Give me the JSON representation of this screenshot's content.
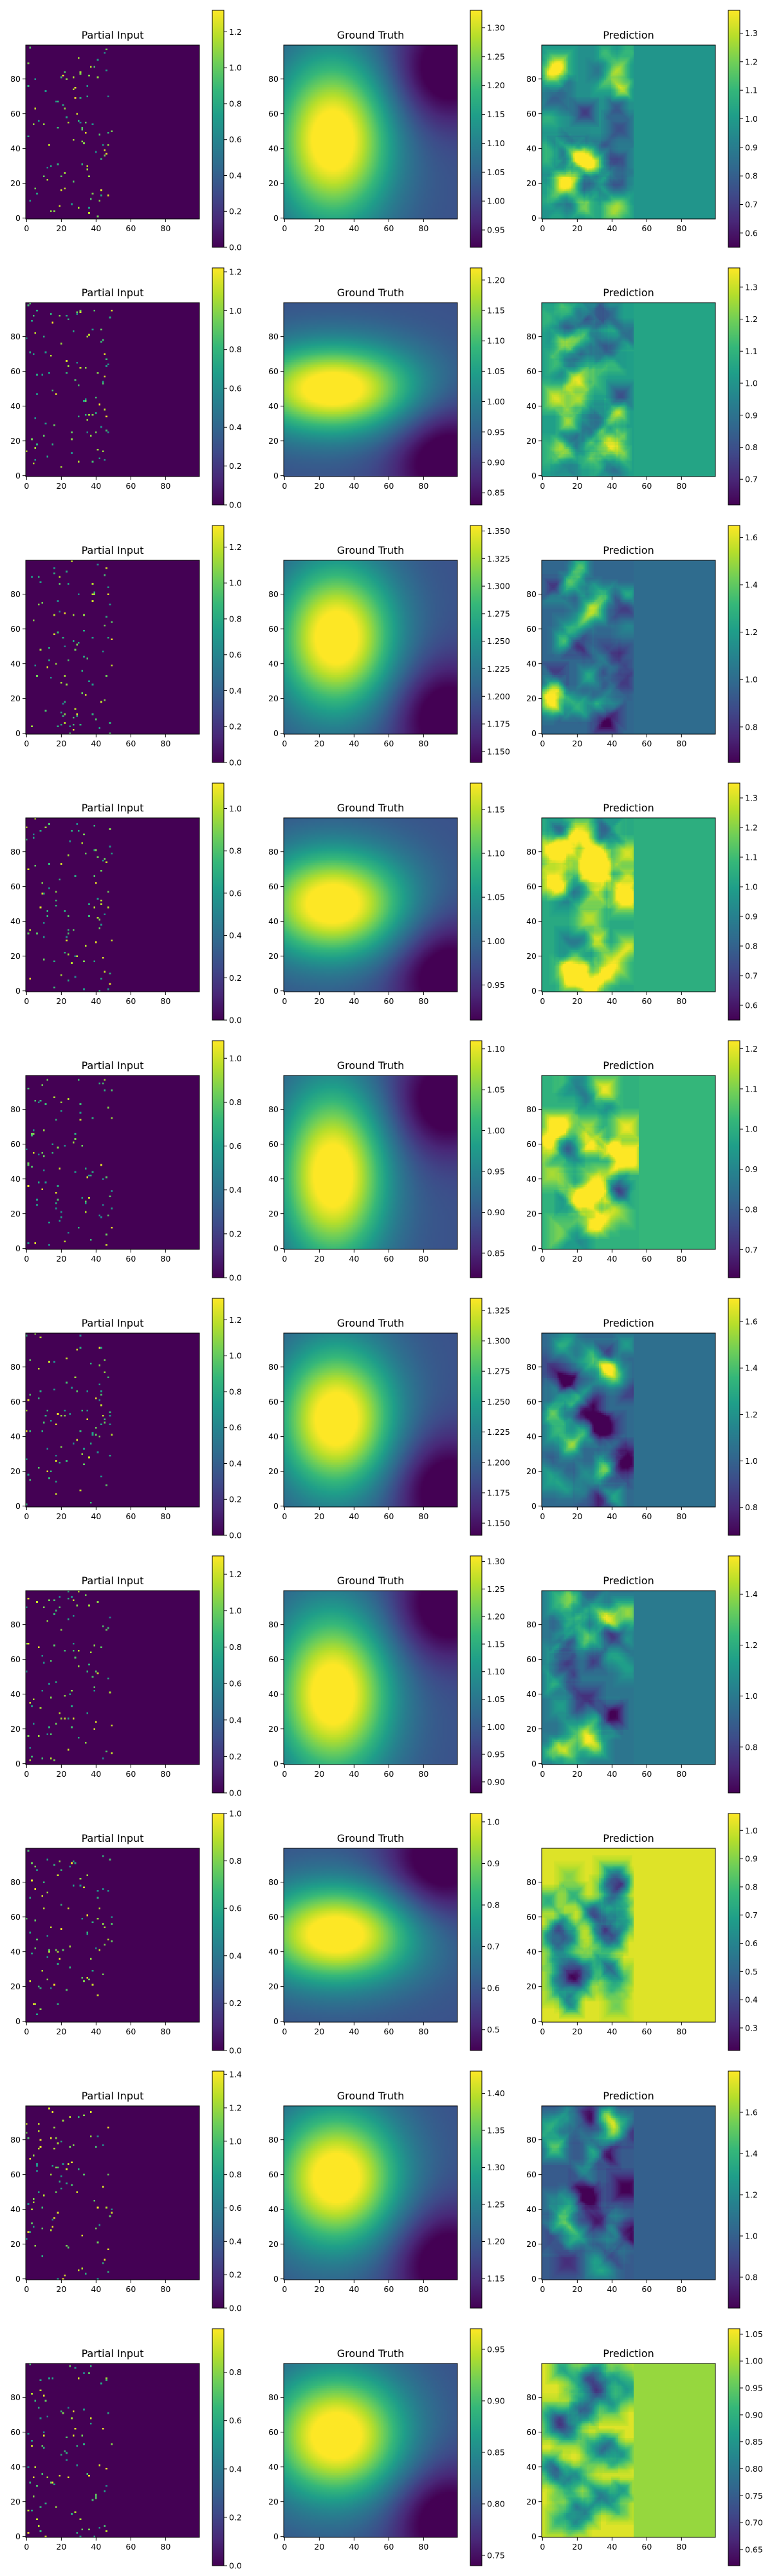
{
  "figure": {
    "colormap": "viridis",
    "column_titles": [
      "Partial Input",
      "Ground Truth",
      "Prediction"
    ]
  },
  "chart_data": {
    "type": "heatmap",
    "grid_size": 100,
    "x_ticks": [
      0,
      20,
      40,
      60,
      80
    ],
    "y_ticks": [
      0,
      20,
      40,
      60,
      80
    ],
    "rows": [
      {
        "partial_input": {
          "colorbar_ticks": [
            "0.0",
            "0.2",
            "0.4",
            "0.6",
            "0.8",
            "1.0",
            "1.2"
          ],
          "vmin": 0,
          "vmax": 1.32,
          "seed": 11
        },
        "ground_truth": {
          "colorbar_ticks": [
            "0.95",
            "1.00",
            "1.05",
            "1.10",
            "1.15",
            "1.20",
            "1.25",
            "1.30"
          ],
          "vmin": 0.92,
          "vmax": 1.33,
          "center": [
            28,
            45
          ],
          "spread": [
            24,
            34
          ],
          "dip": [
            92,
            85
          ]
        },
        "prediction": {
          "colorbar_ticks": [
            "0.6",
            "0.7",
            "0.8",
            "0.9",
            "1.0",
            "1.1",
            "1.2",
            "1.3"
          ],
          "vmin": 0.55,
          "vmax": 1.38,
          "background": 0.98,
          "seed": 21,
          "boundary": 52
        }
      },
      {
        "partial_input": {
          "colorbar_ticks": [
            "0.0",
            "0.2",
            "0.4",
            "0.6",
            "0.8",
            "1.0",
            "1.2"
          ],
          "vmin": 0,
          "vmax": 1.22,
          "seed": 12
        },
        "ground_truth": {
          "colorbar_ticks": [
            "0.85",
            "0.90",
            "0.95",
            "1.00",
            "1.05",
            "1.10",
            "1.15",
            "1.20"
          ],
          "vmin": 0.83,
          "vmax": 1.22,
          "center": [
            28,
            50
          ],
          "spread": [
            34,
            18
          ],
          "dip": [
            92,
            10
          ]
        },
        "prediction": {
          "colorbar_ticks": [
            "0.7",
            "0.8",
            "0.9",
            "1.0",
            "1.1",
            "1.2",
            "1.3"
          ],
          "vmin": 0.62,
          "vmax": 1.36,
          "background": 1.05,
          "seed": 22,
          "boundary": 52
        }
      },
      {
        "partial_input": {
          "colorbar_ticks": [
            "0.0",
            "0.2",
            "0.4",
            "0.6",
            "0.8",
            "1.0",
            "1.2"
          ],
          "vmin": 0,
          "vmax": 1.32,
          "seed": 13
        },
        "ground_truth": {
          "colorbar_ticks": [
            "1.150",
            "1.175",
            "1.200",
            "1.225",
            "1.250",
            "1.275",
            "1.300",
            "1.325",
            "1.350"
          ],
          "vmin": 1.14,
          "vmax": 1.355,
          "center": [
            30,
            55
          ],
          "spread": [
            24,
            30
          ],
          "dip": [
            92,
            10
          ]
        },
        "prediction": {
          "colorbar_ticks": [
            "0.8",
            "1.0",
            "1.2",
            "1.4",
            "1.6"
          ],
          "vmin": 0.65,
          "vmax": 1.65,
          "background": 1.0,
          "seed": 23,
          "boundary": 52
        }
      },
      {
        "partial_input": {
          "colorbar_ticks": [
            "0.0",
            "0.2",
            "0.4",
            "0.6",
            "0.8",
            "1.0"
          ],
          "vmin": 0,
          "vmax": 1.12,
          "seed": 14
        },
        "ground_truth": {
          "colorbar_ticks": [
            "0.95",
            "1.00",
            "1.05",
            "1.10",
            "1.15"
          ],
          "vmin": 0.91,
          "vmax": 1.18,
          "center": [
            28,
            50
          ],
          "spread": [
            30,
            22
          ],
          "dip": [
            92,
            10
          ]
        },
        "prediction": {
          "colorbar_ticks": [
            "0.6",
            "0.7",
            "0.8",
            "0.9",
            "1.0",
            "1.1",
            "1.2",
            "1.3"
          ],
          "vmin": 0.55,
          "vmax": 1.35,
          "background": 1.05,
          "seed": 24,
          "boundary": 52
        }
      },
      {
        "partial_input": {
          "colorbar_ticks": [
            "0.0",
            "0.2",
            "0.4",
            "0.6",
            "0.8",
            "1.0"
          ],
          "vmin": 0,
          "vmax": 1.08,
          "seed": 15
        },
        "ground_truth": {
          "colorbar_ticks": [
            "0.85",
            "0.90",
            "0.95",
            "1.00",
            "1.05",
            "1.10"
          ],
          "vmin": 0.82,
          "vmax": 1.11,
          "center": [
            28,
            42
          ],
          "spread": [
            22,
            36
          ],
          "dip": [
            92,
            85
          ]
        },
        "prediction": {
          "colorbar_ticks": [
            "0.7",
            "0.8",
            "0.9",
            "1.0",
            "1.1",
            "1.2"
          ],
          "vmin": 0.63,
          "vmax": 1.22,
          "background": 1.02,
          "seed": 25,
          "boundary": 55
        }
      },
      {
        "partial_input": {
          "colorbar_ticks": [
            "0.0",
            "0.2",
            "0.4",
            "0.6",
            "0.8",
            "1.0",
            "1.2"
          ],
          "vmin": 0,
          "vmax": 1.32,
          "seed": 16
        },
        "ground_truth": {
          "colorbar_ticks": [
            "1.150",
            "1.175",
            "1.200",
            "1.225",
            "1.250",
            "1.275",
            "1.300",
            "1.325"
          ],
          "vmin": 1.14,
          "vmax": 1.335,
          "center": [
            30,
            50
          ],
          "spread": [
            24,
            30
          ],
          "dip": [
            92,
            10
          ]
        },
        "prediction": {
          "colorbar_ticks": [
            "0.8",
            "1.0",
            "1.2",
            "1.4",
            "1.6"
          ],
          "vmin": 0.68,
          "vmax": 1.7,
          "background": 1.05,
          "seed": 26,
          "boundary": 52
        }
      },
      {
        "partial_input": {
          "colorbar_ticks": [
            "0.0",
            "0.2",
            "0.4",
            "0.6",
            "0.8",
            "1.0",
            "1.2"
          ],
          "vmin": 0,
          "vmax": 1.3,
          "seed": 17
        },
        "ground_truth": {
          "colorbar_ticks": [
            "0.90",
            "0.95",
            "1.00",
            "1.05",
            "1.10",
            "1.15",
            "1.20",
            "1.25",
            "1.30"
          ],
          "vmin": 0.88,
          "vmax": 1.31,
          "center": [
            28,
            40
          ],
          "spread": [
            24,
            34
          ],
          "dip": [
            92,
            90
          ]
        },
        "prediction": {
          "colorbar_ticks": [
            "0.8",
            "1.0",
            "1.2",
            "1.4"
          ],
          "vmin": 0.62,
          "vmax": 1.55,
          "background": 1.0,
          "seed": 27,
          "boundary": 52
        }
      },
      {
        "partial_input": {
          "colorbar_ticks": [
            "0.0",
            "0.2",
            "0.4",
            "0.6",
            "0.8",
            "1.0"
          ],
          "vmin": 0,
          "vmax": 1.0,
          "seed": 18
        },
        "ground_truth": {
          "colorbar_ticks": [
            "0.5",
            "0.6",
            "0.7",
            "0.8",
            "0.9",
            "1.0"
          ],
          "vmin": 0.45,
          "vmax": 1.02,
          "center": [
            30,
            50
          ],
          "spread": [
            32,
            20
          ],
          "dip": [
            88,
            90
          ]
        },
        "prediction": {
          "colorbar_ticks": [
            "0.3",
            "0.4",
            "0.5",
            "0.6",
            "0.7",
            "0.8",
            "0.9",
            "1.0"
          ],
          "vmin": 0.22,
          "vmax": 1.06,
          "background": 1.02,
          "seed": 28,
          "boundary": 52,
          "bright": true
        }
      },
      {
        "partial_input": {
          "colorbar_ticks": [
            "0.0",
            "0.2",
            "0.4",
            "0.6",
            "0.8",
            "1.0",
            "1.2",
            "1.4"
          ],
          "vmin": 0,
          "vmax": 1.42,
          "seed": 19
        },
        "ground_truth": {
          "colorbar_ticks": [
            "1.15",
            "1.20",
            "1.25",
            "1.30",
            "1.35",
            "1.40"
          ],
          "vmin": 1.11,
          "vmax": 1.43,
          "center": [
            30,
            58
          ],
          "spread": [
            26,
            28
          ],
          "dip": [
            92,
            10
          ]
        },
        "prediction": {
          "colorbar_ticks": [
            "0.8",
            "1.0",
            "1.2",
            "1.4",
            "1.6"
          ],
          "vmin": 0.65,
          "vmax": 1.8,
          "background": 1.0,
          "seed": 29,
          "boundary": 52
        }
      },
      {
        "partial_input": {
          "colorbar_ticks": [
            "0.0",
            "0.2",
            "0.4",
            "0.6",
            "0.8"
          ],
          "vmin": 0,
          "vmax": 0.98,
          "seed": 20
        },
        "ground_truth": {
          "colorbar_ticks": [
            "0.75",
            "0.80",
            "0.85",
            "0.90",
            "0.95"
          ],
          "vmin": 0.74,
          "vmax": 0.97,
          "center": [
            30,
            58
          ],
          "spread": [
            28,
            26
          ],
          "dip": [
            92,
            10
          ]
        },
        "prediction": {
          "colorbar_ticks": [
            "0.65",
            "0.70",
            "0.75",
            "0.80",
            "0.85",
            "0.90",
            "0.95",
            "1.00",
            "1.05"
          ],
          "vmin": 0.62,
          "vmax": 1.06,
          "background": 0.99,
          "seed": 30,
          "boundary": 52,
          "bright": true
        }
      }
    ]
  }
}
